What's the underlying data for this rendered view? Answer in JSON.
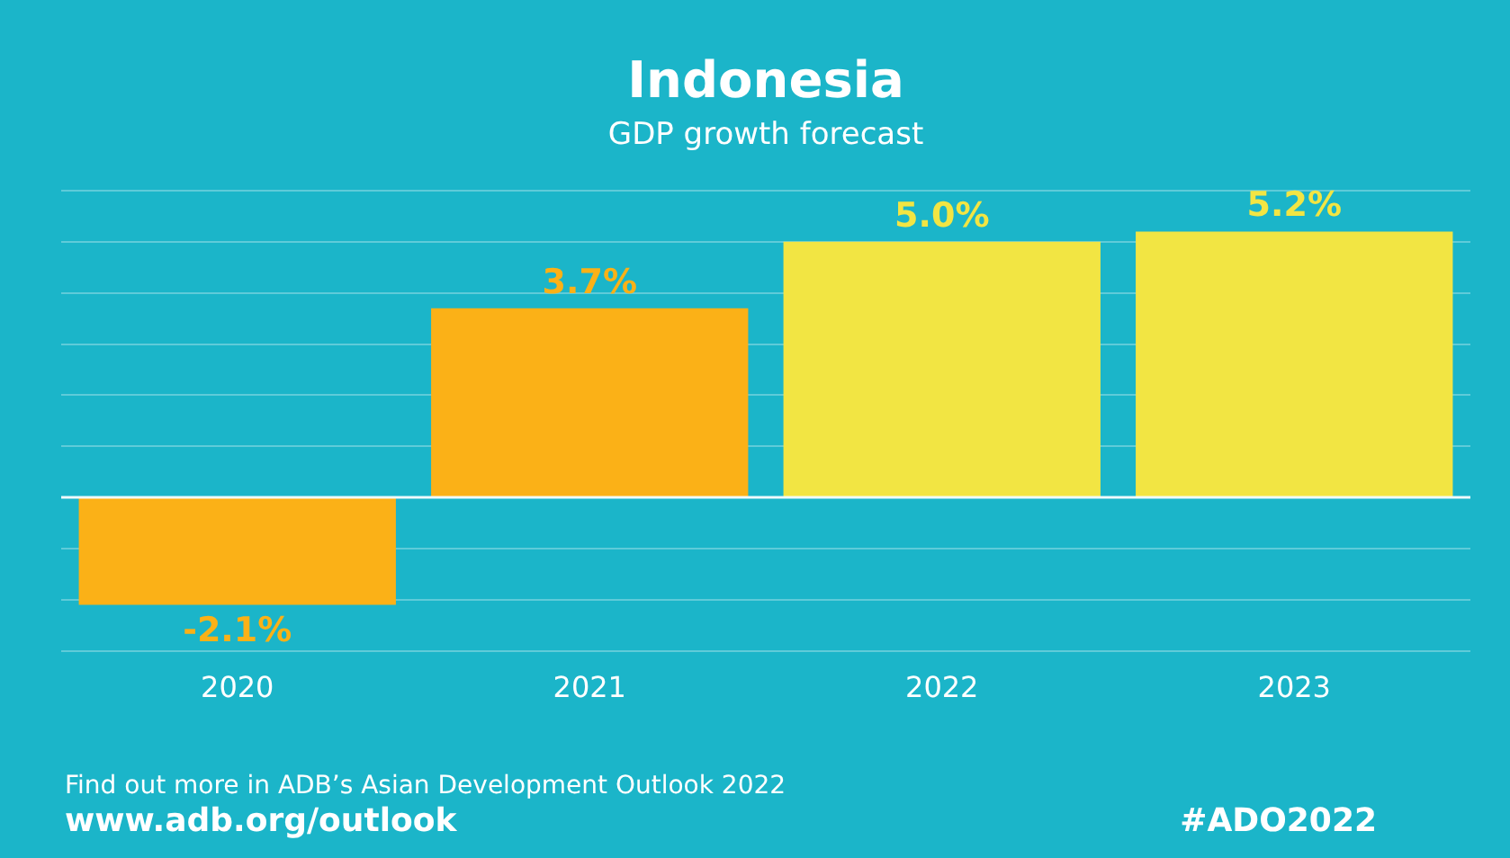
{
  "chart_data": {
    "type": "bar",
    "title": "Indonesia",
    "subtitle": "GDP growth forecast",
    "categories": [
      "2020",
      "2021",
      "2022",
      "2023"
    ],
    "values": [
      -2.1,
      3.7,
      5.0,
      5.2
    ],
    "colors": [
      "#fbb117",
      "#fbb117",
      "#f2e543",
      "#f2e543"
    ],
    "value_labels": [
      "-2.1%",
      "3.7%",
      "5.0%",
      "5.2%"
    ],
    "grid": "y",
    "tick_labels": "x",
    "legend": false,
    "annotations": [
      "Find out more in ADB’s Asian Development Outlook 2022",
      "www.adb.org/outlook",
      "#ADO2022"
    ]
  }
}
